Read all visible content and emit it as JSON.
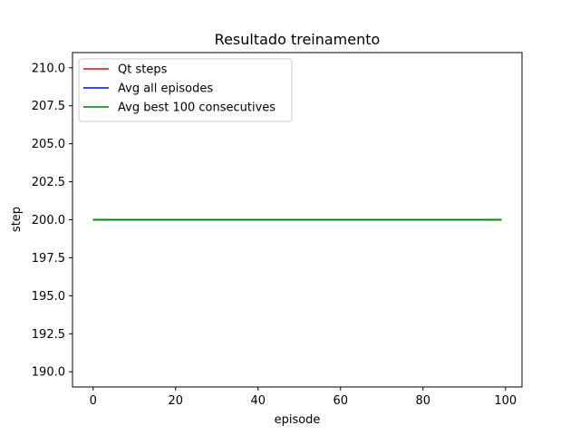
{
  "chart_data": {
    "type": "line",
    "title": "Resultado treinamento",
    "xlabel": "episode",
    "ylabel": "step",
    "xlim": [
      -5,
      104
    ],
    "ylim": [
      189,
      211
    ],
    "xticks": [
      0,
      20,
      40,
      60,
      80,
      100
    ],
    "xtick_labels": [
      "0",
      "20",
      "40",
      "60",
      "80",
      "100"
    ],
    "yticks": [
      190.0,
      192.5,
      195.0,
      197.5,
      200.0,
      202.5,
      205.0,
      207.5,
      210.0
    ],
    "ytick_labels": [
      "190.0",
      "192.5",
      "195.0",
      "197.5",
      "200.0",
      "202.5",
      "205.0",
      "207.5",
      "210.0"
    ],
    "grid": false,
    "legend_position": "top-left",
    "series": [
      {
        "name": "Qt steps",
        "color": "#ff0000",
        "x_start": 0,
        "x_end": 99,
        "value": 200
      },
      {
        "name": "Avg all episodes",
        "color": "#0000ff",
        "x_start": 0,
        "x_end": 99,
        "value": 200
      },
      {
        "name": "Avg best 100 consecutives",
        "color": "#008000",
        "x_start": 0,
        "x_end": 99,
        "value": 200
      }
    ]
  }
}
